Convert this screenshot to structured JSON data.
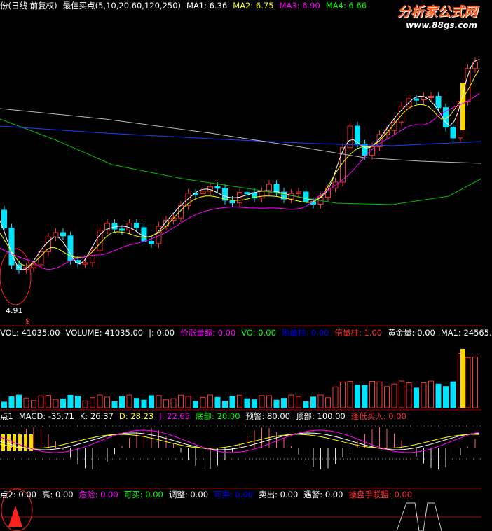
{
  "header": {
    "items": [
      {
        "text": "份(日线 前复权)",
        "color": "#ffffff"
      },
      {
        "text": "最佳买点(5,10,20,60,120,250)",
        "color": "#ffffff"
      },
      {
        "text": "MA1: 6.36",
        "color": "#ffffff"
      },
      {
        "text": "MA2: 6.75",
        "color": "#ffff00"
      },
      {
        "text": "MA3: 6.90",
        "color": "#ff00ff"
      },
      {
        "text": "MA4: 6.66",
        "color": "#00ff00"
      }
    ]
  },
  "logo": {
    "title": "分析家公式网",
    "url": "www.88gs.com"
  },
  "price_panel": {
    "low_label": "4.91",
    "signal": "$"
  },
  "panels": [
    {
      "items": [
        {
          "text": "VOL: 41035.00",
          "color": "#ffffff"
        },
        {
          "text": "VOLUME: 41035.00",
          "color": "#ffffff"
        },
        {
          "text": "|: 0.00",
          "color": "#ffffff"
        },
        {
          "text": "价涨量缩: 0.00",
          "color": "#ff00ff"
        },
        {
          "text": "VO: 0.00",
          "color": "#00ff00"
        },
        {
          "text": "地量柱: 0.00",
          "color": "#0000ff"
        },
        {
          "text": "倍量柱: 1.00",
          "color": "#ff3030"
        },
        {
          "text": "黄金量: 0.00",
          "color": "#ffffff"
        },
        {
          "text": "MA1: 24565.",
          "color": "#ffffff"
        }
      ]
    },
    {
      "items": [
        {
          "text": "点1",
          "color": "#ffffff"
        },
        {
          "text": "MACD: -35.71",
          "color": "#ffffff"
        },
        {
          "text": "K: 26.37",
          "color": "#ffffff"
        },
        {
          "text": "D: 28.23",
          "color": "#ffff00"
        },
        {
          "text": "J: 22.65",
          "color": "#ff00ff"
        },
        {
          "text": "底部: 20.00",
          "color": "#00ff00"
        },
        {
          "text": "预警: 80.00",
          "color": "#ffffff"
        },
        {
          "text": "顶部: 100.00",
          "color": "#ffffff"
        },
        {
          "text": "逢低买入: 0.00",
          "color": "#ff3030"
        }
      ]
    },
    {
      "items": [
        {
          "text": "点2: 0.00",
          "color": "#ffffff"
        },
        {
          "text": "高: 0.00",
          "color": "#ffffff"
        },
        {
          "text": "危险: 0.00",
          "color": "#ff00ff"
        },
        {
          "text": "可买: 0.00",
          "color": "#00ff00"
        },
        {
          "text": "调整: 0.00",
          "color": "#ffffff"
        },
        {
          "text": "可卖: 0.00",
          "color": "#0000ff"
        },
        {
          "text": "卖出: 0.00",
          "color": "#ffffff"
        },
        {
          "text": "遇警: 0.00",
          "color": "#ffffff"
        },
        {
          "text": "操盘手联盟: 0.00",
          "color": "#ff3030"
        }
      ]
    }
  ]
}
